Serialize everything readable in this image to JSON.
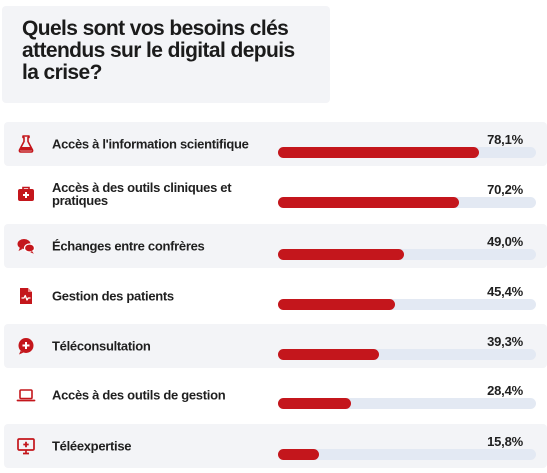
{
  "colors": {
    "accent": "#c4161c",
    "track": "#e3e9f3",
    "card": "#f3f4f7"
  },
  "chart_data": {
    "type": "bar",
    "title": "Quels sont vos besoins clés attendus sur le digital depuis la crise?",
    "xlabel": "",
    "ylabel": "",
    "xlim": [
      0,
      100
    ],
    "categories": [
      "Accès à l'information scientifique",
      "Accès à des outils cliniques et pratiques",
      "Échanges entre confrères",
      "Gestion des patients",
      "Téléconsultation",
      "Accès à des outils de gestion",
      "Téléexpertise"
    ],
    "values": [
      78.1,
      70.2,
      49.0,
      45.4,
      39.3,
      28.4,
      15.8
    ],
    "value_labels": [
      "78,1%",
      "70,2%",
      "49,0%",
      "45,4%",
      "39,3%",
      "28,4%",
      "15,8%"
    ],
    "icons": [
      "flask-icon",
      "medical-kit-icon",
      "chat-bubbles-icon",
      "patient-file-icon",
      "medical-chat-icon",
      "laptop-icon",
      "monitor-cross-icon"
    ]
  }
}
